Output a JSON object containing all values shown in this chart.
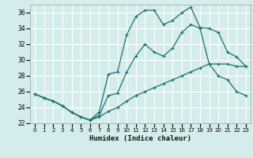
{
  "xlabel": "Humidex (Indice chaleur)",
  "bg_color": "#d4ecec",
  "grid_color": "#ffffff",
  "line_color": "#1a7070",
  "xlim": [
    -0.5,
    23.5
  ],
  "ylim": [
    22,
    37
  ],
  "xticks": [
    0,
    1,
    2,
    3,
    4,
    5,
    6,
    7,
    8,
    9,
    10,
    11,
    12,
    13,
    14,
    15,
    16,
    17,
    18,
    19,
    20,
    21,
    22,
    23
  ],
  "yticks": [
    22,
    24,
    26,
    28,
    30,
    32,
    34,
    36
  ],
  "line1_y": [
    25.7,
    25.2,
    24.8,
    24.2,
    23.4,
    22.8,
    22.4,
    23.4,
    28.2,
    28.5,
    33.2,
    35.5,
    36.3,
    36.3,
    34.5,
    35.0,
    36.0,
    36.7,
    34.1,
    34.0,
    33.5,
    31.0,
    30.4,
    29.2
  ],
  "line2_y": [
    25.7,
    25.2,
    24.8,
    24.2,
    23.4,
    22.8,
    22.4,
    23.0,
    25.5,
    25.8,
    28.5,
    30.5,
    32.0,
    31.0,
    30.5,
    31.5,
    33.5,
    34.5,
    34.0,
    29.5,
    28.0,
    27.5,
    26.0,
    25.5
  ],
  "line3_y": [
    25.7,
    25.2,
    24.8,
    24.2,
    23.4,
    22.8,
    22.4,
    22.8,
    23.5,
    24.0,
    24.8,
    25.5,
    26.0,
    26.5,
    27.0,
    27.5,
    28.0,
    28.5,
    29.0,
    29.5,
    29.5,
    29.5,
    29.2,
    29.2
  ]
}
